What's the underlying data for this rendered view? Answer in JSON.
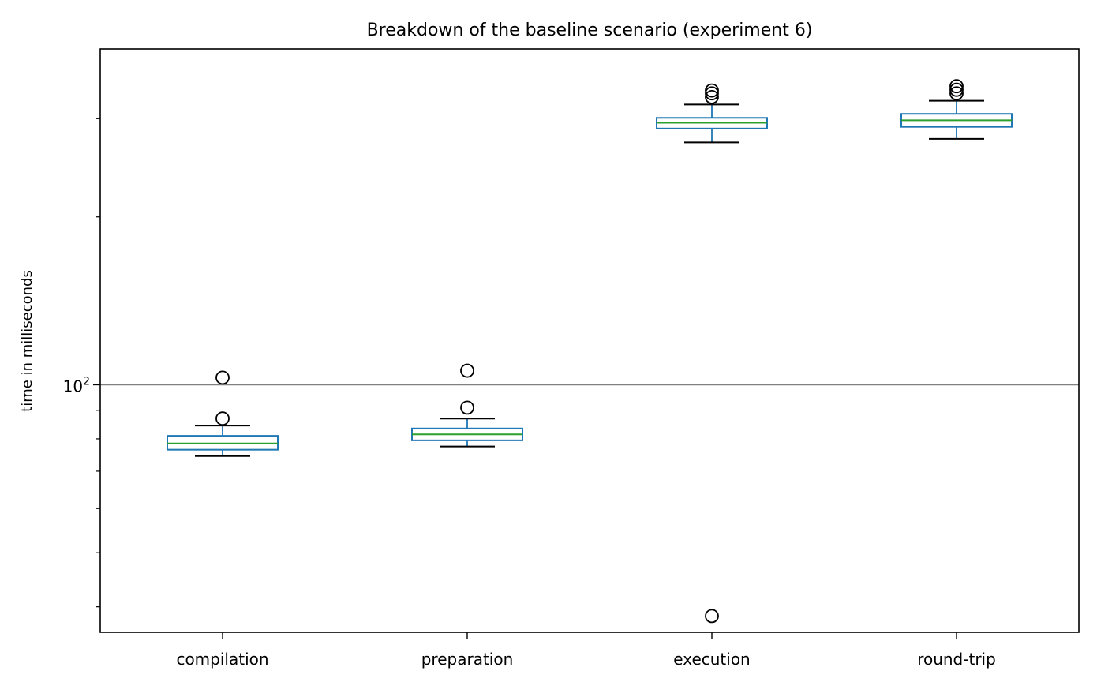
{
  "chart_data": {
    "type": "box",
    "title": "Breakdown of the baseline scenario (experiment 6)",
    "xlabel": "",
    "ylabel": "time in milliseconds",
    "yscale": "log",
    "ylim": [
      36,
      400
    ],
    "y_major_tick": {
      "value": 100,
      "label_base": "10",
      "label_exp": "2"
    },
    "y_minor_ticks": [
      40,
      50,
      60,
      70,
      80,
      90,
      200,
      300
    ],
    "reference_line": {
      "y": 100,
      "color": "#808080"
    },
    "grid": false,
    "categories": [
      "compilation",
      "preparation",
      "execution",
      "round-trip"
    ],
    "boxes": [
      {
        "category": "compilation",
        "whisker_low": 74.5,
        "q1": 76.5,
        "median": 78.5,
        "q3": 81.0,
        "whisker_high": 84.5,
        "outliers": [
          87.0,
          103.0
        ]
      },
      {
        "category": "preparation",
        "whisker_low": 77.5,
        "q1": 79.5,
        "median": 81.5,
        "q3": 83.5,
        "whisker_high": 87.0,
        "outliers": [
          91.0,
          106.0
        ]
      },
      {
        "category": "execution",
        "whisker_low": 272,
        "q1": 288,
        "median": 295,
        "q3": 301,
        "whisker_high": 318,
        "outliers": [
          328,
          333,
          337,
          38.5
        ]
      },
      {
        "category": "round-trip",
        "whisker_low": 276,
        "q1": 290,
        "median": 298,
        "q3": 306,
        "whisker_high": 323,
        "outliers": [
          333,
          338,
          343
        ]
      }
    ],
    "colors": {
      "box": "#1f77b4",
      "median": "#2ca02c",
      "whisker": "#000000",
      "outlier": "#000000",
      "reference": "#808080",
      "axes": "#000000"
    }
  }
}
